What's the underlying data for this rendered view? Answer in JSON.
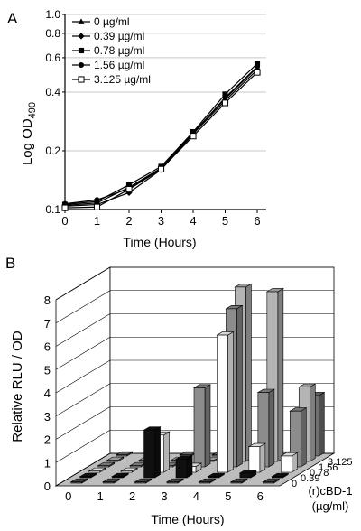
{
  "chart_data": [
    {
      "panel_label": "A",
      "type": "line",
      "ylabel_main": "Log OD",
      "ylabel_sub": "490",
      "xlabel": "Time (Hours)",
      "log_y": true,
      "ylim": [
        0.1,
        1.0
      ],
      "yticks": [
        "0.1",
        "0.2",
        "0.4",
        "0.6",
        "0.8",
        "1.0"
      ],
      "ytick_values": [
        0.1,
        0.2,
        0.4,
        0.6,
        0.8,
        1.0
      ],
      "x": [
        0,
        1,
        2,
        3,
        4,
        5,
        6
      ],
      "xlim": [
        0,
        6
      ],
      "legend_position": "top-left",
      "series": [
        {
          "name": "0 µg/ml",
          "marker": "triangle",
          "values": [
            0.105,
            0.108,
            0.13,
            0.163,
            0.247,
            0.37,
            0.535
          ]
        },
        {
          "name": "0.39 µg/ml",
          "marker": "diamond",
          "values": [
            0.104,
            0.106,
            0.122,
            0.16,
            0.244,
            0.362,
            0.52
          ]
        },
        {
          "name": "0.78 µg/ml",
          "marker": "square",
          "values": [
            0.106,
            0.11,
            0.134,
            0.166,
            0.25,
            0.39,
            0.56
          ]
        },
        {
          "name": "1.56 µg/ml",
          "marker": "circle",
          "values": [
            0.107,
            0.112,
            0.128,
            0.162,
            0.246,
            0.375,
            0.54
          ]
        },
        {
          "name": "3.125 µg/ml",
          "marker": "open-square",
          "values": [
            0.102,
            0.103,
            0.127,
            0.161,
            0.238,
            0.352,
            0.505
          ]
        }
      ]
    },
    {
      "panel_label": "B",
      "type": "bar",
      "subtype": "3d-grouped",
      "ylabel": "Relative RLU / OD",
      "xlabel": "Time (Hours)",
      "depth_label": "(r)cBD-1",
      "depth_label_unit": "(µg/ml)",
      "ylim": [
        0,
        8
      ],
      "yticks": [
        0,
        1,
        2,
        3,
        4,
        5,
        6,
        7,
        8
      ],
      "categories": [
        "0",
        "1",
        "2",
        "3",
        "4",
        "5",
        "6"
      ],
      "series": [
        {
          "name": "0",
          "color": "#505050",
          "values": [
            0.05,
            0.05,
            0.05,
            0.05,
            0.05,
            0.05,
            0.05
          ]
        },
        {
          "name": "0.39",
          "color": "#101010",
          "values": [
            0.05,
            0.05,
            2.05,
            0.8,
            0.05,
            0.2,
            0.05
          ]
        },
        {
          "name": "0.78",
          "color": "#ffffff",
          "values": [
            0.05,
            0.05,
            1.6,
            0.25,
            5.9,
            1.1,
            0.7
          ]
        },
        {
          "name": "1.56",
          "color": "#8c8c8c",
          "values": [
            0.05,
            0.05,
            0.05,
            3.4,
            6.8,
            3.2,
            2.4
          ]
        },
        {
          "name": "3.125",
          "color": "#b4b4b4",
          "values": [
            0.05,
            0.05,
            0.05,
            0.05,
            7.5,
            7.3,
            3.2
          ]
        }
      ],
      "back_series": {
        "color": "#707070",
        "values": [
          0.05,
          0.05,
          0.05,
          0.05,
          0.05,
          0.05,
          2.6
        ]
      }
    }
  ]
}
